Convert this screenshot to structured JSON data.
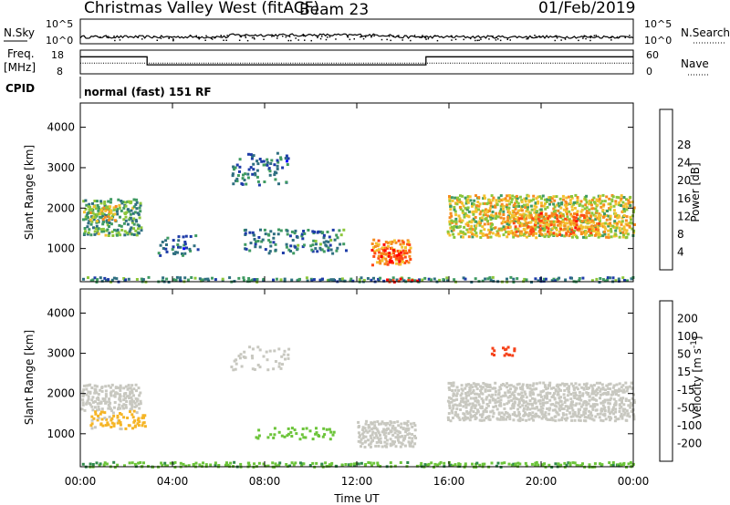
{
  "header": {
    "radar": "Christmas Valley West (fitACF)",
    "beam": "Beam 23",
    "date": "01/Feb/2019"
  },
  "noise_panel": {
    "left_label": "N.Sky",
    "right_label": "N.Search",
    "left_ticks": [
      "10^5",
      "10^0"
    ],
    "right_ticks": [
      "10^5",
      "10^0"
    ]
  },
  "freq_panel": {
    "label_line1": "Freq.",
    "label_line2": "[MHz]",
    "left_ticks": [
      "18",
      "8"
    ],
    "right_label": "Nave",
    "right_ticks": [
      "60",
      "0"
    ],
    "freq_steps": [
      {
        "from": 0.0,
        "to": 2.9,
        "freq": 15.2
      },
      {
        "from": 2.9,
        "to": 15.0,
        "freq": 11.8
      },
      {
        "from": 15.0,
        "to": 24.0,
        "freq": 15.2
      }
    ],
    "nave_level": 27
  },
  "cpid": {
    "label": "CPID",
    "text": "normal (fast) 151 RF"
  },
  "chart_data": [
    {
      "type": "heatmap",
      "title": "",
      "ylabel": "Slant Range [km]",
      "x_ticks": [
        "00:00",
        "04:00",
        "08:00",
        "12:00",
        "16:00",
        "20:00",
        "00:00"
      ],
      "y_ticks": [
        "1000",
        "2000",
        "3000",
        "4000"
      ],
      "xlim": [
        0,
        24
      ],
      "ylim": [
        180,
        4600
      ],
      "colorbar": {
        "label": "Power [dB]",
        "ticks": [
          "4",
          "8",
          "12",
          "16",
          "20",
          "24",
          "28"
        ],
        "range": [
          0,
          30
        ],
        "colors": [
          "#0000ff",
          "#1e3ca8",
          "#2f6f80",
          "#3f9a62",
          "#8cc63a",
          "#f3c22f",
          "#f58b1f",
          "#ff4a14",
          "#ff0000"
        ]
      },
      "clusters": [
        {
          "t": [
            0.0,
            2.6
          ],
          "r": [
            1350,
            2250
          ],
          "level": 12,
          "density": 0.7
        },
        {
          "t": [
            0.3,
            1.5
          ],
          "r": [
            1700,
            2100
          ],
          "level": 18,
          "density": 0.6
        },
        {
          "t": [
            12.6,
            14.3
          ],
          "r": [
            620,
            1250
          ],
          "level": 22,
          "density": 0.75
        },
        {
          "t": [
            13.0,
            14.0
          ],
          "r": [
            700,
            1000
          ],
          "level": 27,
          "density": 0.5
        },
        {
          "t": [
            15.9,
            24.0
          ],
          "r": [
            1300,
            2350
          ],
          "level": 17,
          "density": 0.75
        },
        {
          "t": [
            18.5,
            22.5
          ],
          "r": [
            1350,
            1900
          ],
          "level": 22,
          "density": 0.6
        },
        {
          "t": [
            7.0,
            11.5
          ],
          "r": [
            900,
            1500
          ],
          "level": 9,
          "density": 0.35
        },
        {
          "t": [
            6.5,
            9.0
          ],
          "r": [
            2600,
            3400
          ],
          "level": 8,
          "density": 0.3
        },
        {
          "t": [
            3.3,
            5.2
          ],
          "r": [
            800,
            1400
          ],
          "level": 7,
          "density": 0.25
        },
        {
          "t": [
            0.0,
            24.0
          ],
          "r": [
            200,
            320
          ],
          "level": 10,
          "density": 0.55
        },
        {
          "t": [
            13.2,
            14.6
          ],
          "r": [
            200,
            290
          ],
          "level": 28,
          "density": 0.7
        }
      ]
    },
    {
      "type": "heatmap",
      "title": "",
      "ylabel": "Slant Range [km]",
      "xlabel": "Time UT",
      "x_ticks": [
        "00:00",
        "04:00",
        "08:00",
        "12:00",
        "16:00",
        "20:00",
        "00:00"
      ],
      "y_ticks": [
        "1000",
        "2000",
        "3000",
        "4000"
      ],
      "xlim": [
        0,
        24
      ],
      "ylim": [
        180,
        4600
      ],
      "colorbar": {
        "label": "Velocity [m s^-1]",
        "ticks": [
          "200",
          "100",
          "50",
          "15",
          "-15",
          "-50",
          "-100",
          "-200"
        ],
        "range": [
          -250,
          250
        ],
        "colors": [
          "#1a2fc8",
          "#2a4e96",
          "#2f8a4a",
          "#6cc43a",
          "#c8c8c0",
          "#f5b526",
          "#f57f1e",
          "#f5421a",
          "#ff0000"
        ]
      },
      "clusters": [
        {
          "t": [
            0.0,
            2.6
          ],
          "r": [
            1600,
            2250
          ],
          "level": 0,
          "density": 0.75
        },
        {
          "t": [
            0.4,
            2.8
          ],
          "r": [
            1150,
            1600
          ],
          "level": 30,
          "density": 0.5
        },
        {
          "t": [
            12.0,
            14.5
          ],
          "r": [
            700,
            1350
          ],
          "level": 0,
          "density": 0.75
        },
        {
          "t": [
            15.9,
            24.0
          ],
          "r": [
            1350,
            2300
          ],
          "level": 0,
          "density": 0.8
        },
        {
          "t": [
            7.5,
            11.0
          ],
          "r": [
            900,
            1200
          ],
          "level": -60,
          "density": 0.4
        },
        {
          "t": [
            17.8,
            18.8
          ],
          "r": [
            2950,
            3200
          ],
          "level": 160,
          "density": 0.6
        },
        {
          "t": [
            0.0,
            24.0
          ],
          "r": [
            200,
            320
          ],
          "level": -80,
          "density": 0.6
        },
        {
          "t": [
            6.5,
            9.0
          ],
          "r": [
            2600,
            3200
          ],
          "level": 0,
          "density": 0.3
        }
      ]
    }
  ]
}
